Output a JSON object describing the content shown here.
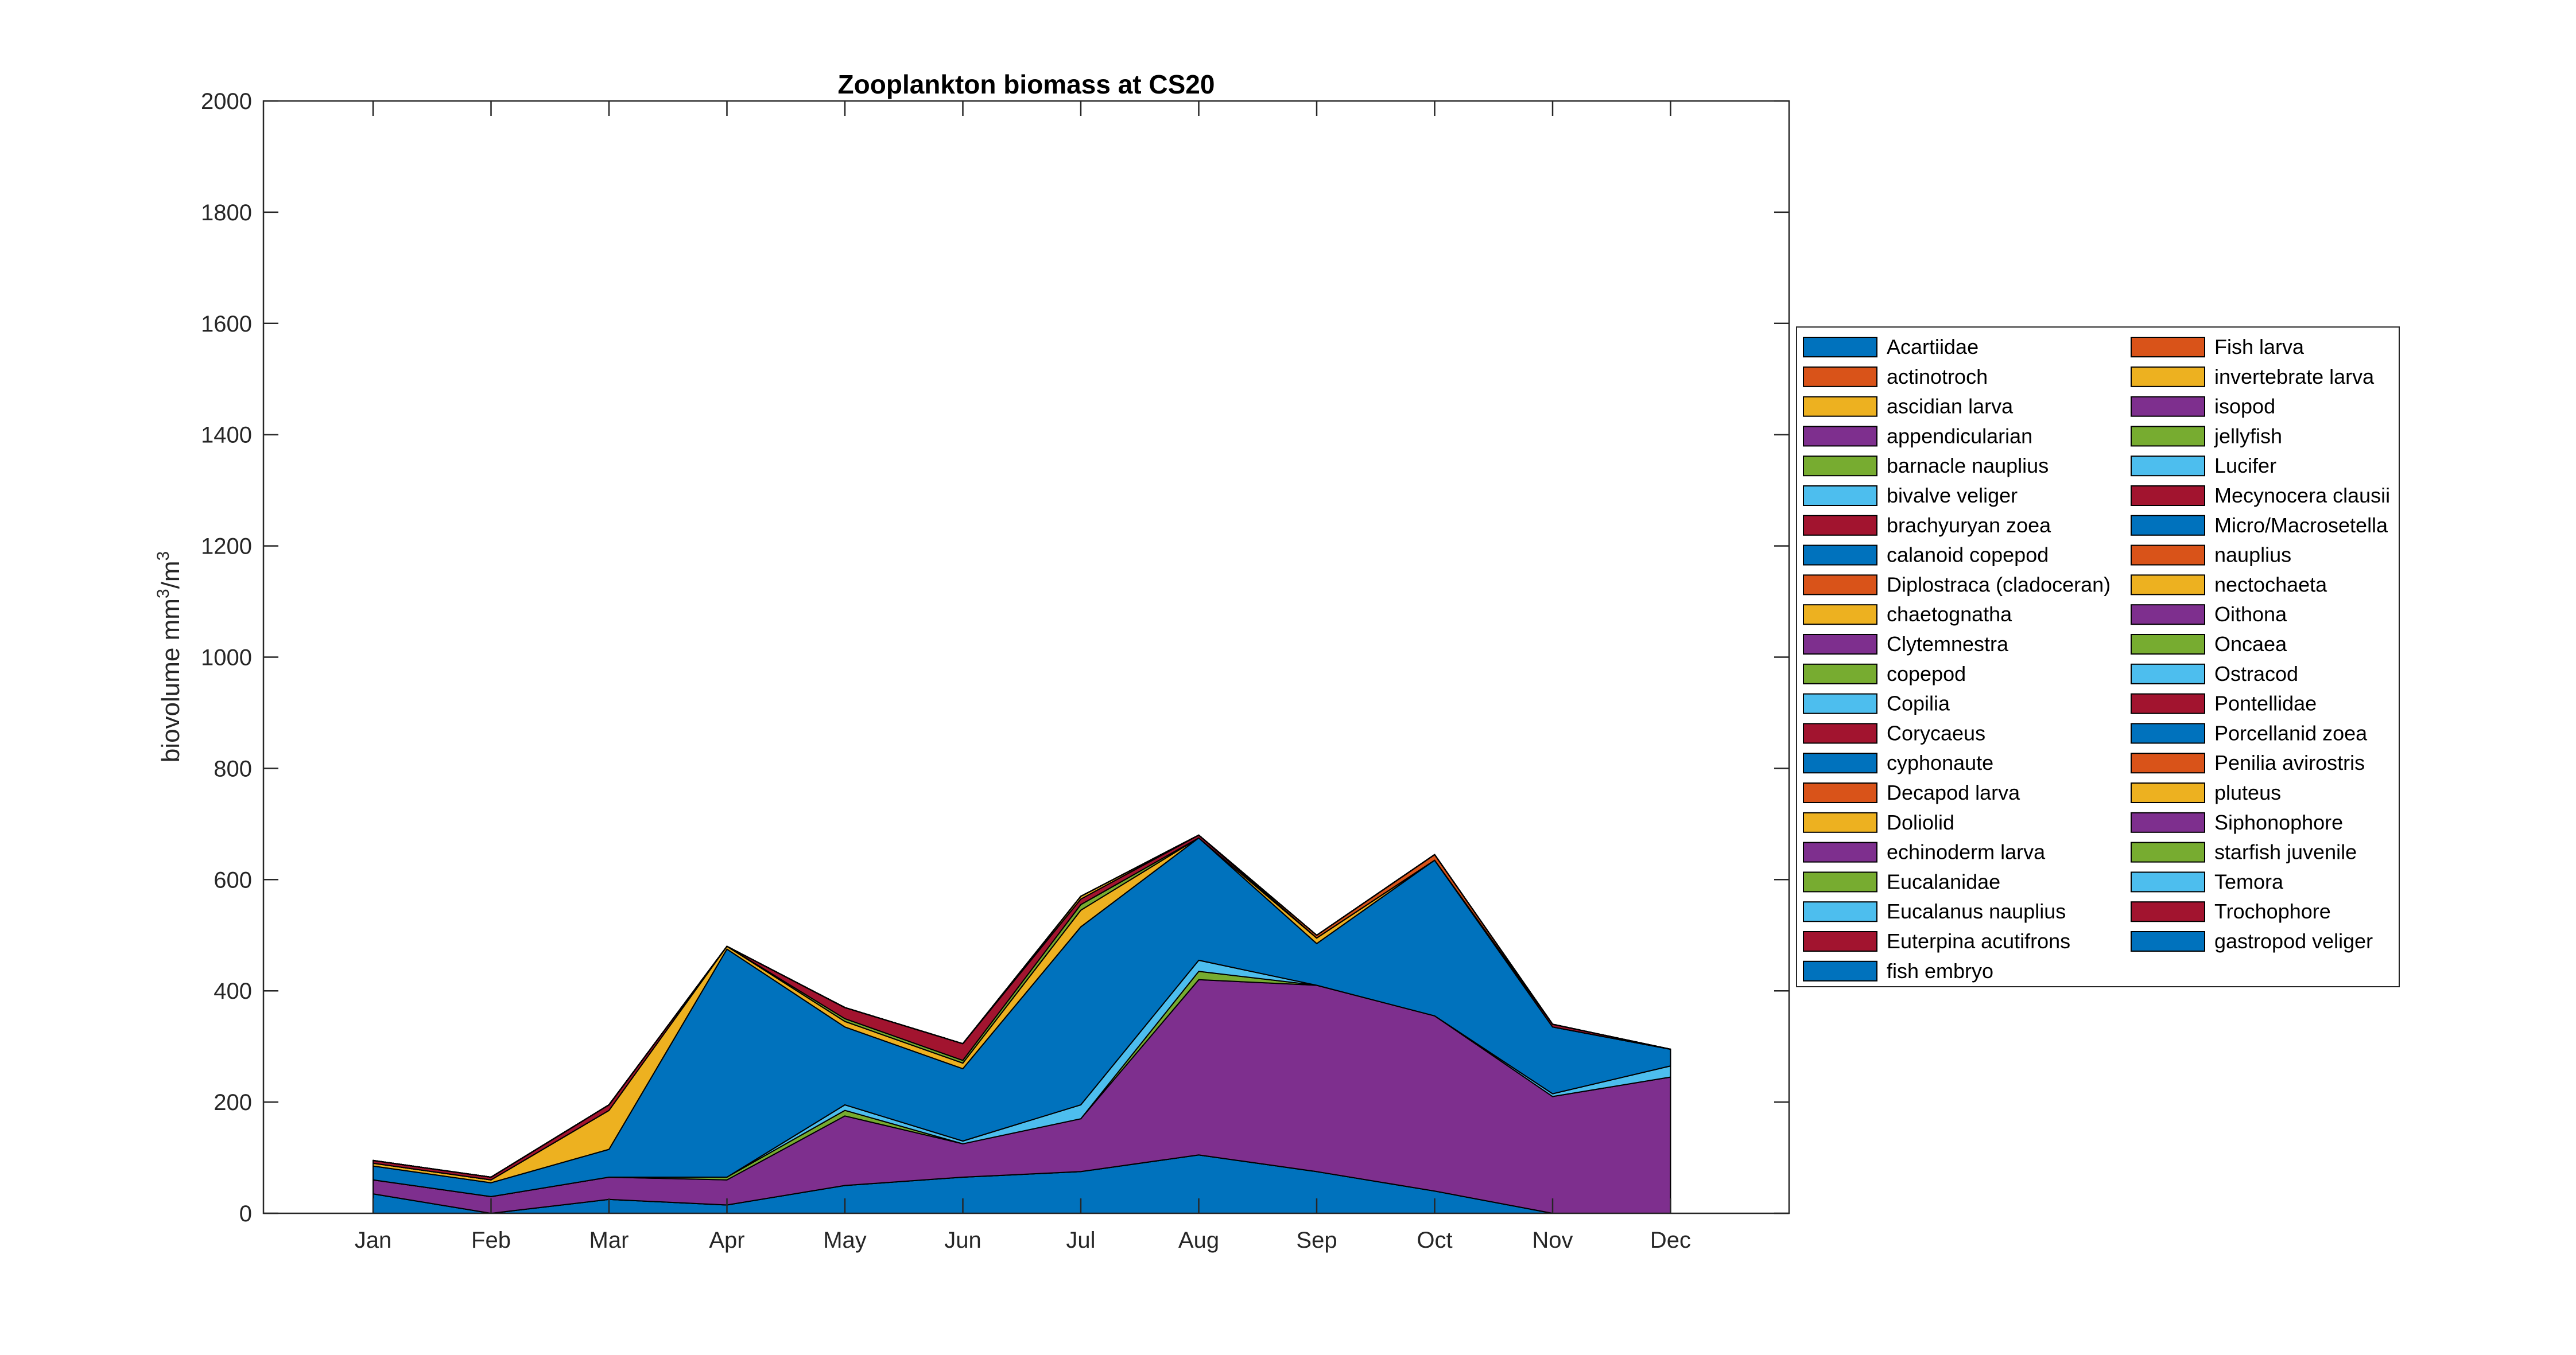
{
  "chart_data": {
    "type": "area",
    "stacked": true,
    "title": "Zooplankton biomass at CS20",
    "xlabel": "",
    "ylabel": "biovolume mm",
    "ylabel_sup1": "3",
    "ylabel_mid": "/m",
    "ylabel_sup2": "3",
    "ylim": [
      0,
      2000
    ],
    "yticks": [
      "0",
      "200",
      "400",
      "600",
      "800",
      "1000",
      "1200",
      "1400",
      "1600",
      "1800",
      "2000"
    ],
    "categories": [
      "Jan",
      "Feb",
      "Mar",
      "Apr",
      "May",
      "Jun",
      "Jul",
      "Aug",
      "Sep",
      "Oct",
      "Nov",
      "Dec"
    ],
    "grid": false,
    "legend_position": "right",
    "series": [
      {
        "name": "Acartiidae",
        "color": "#0072BD",
        "values": [
          35,
          0,
          25,
          15,
          50,
          65,
          75,
          105,
          75,
          40,
          0,
          0
        ]
      },
      {
        "name": "actinotroch",
        "color": "#D95319",
        "values": [
          0,
          0,
          0,
          0,
          0,
          0,
          0,
          0,
          0,
          0,
          0,
          0
        ]
      },
      {
        "name": "ascidian larva",
        "color": "#EDB120",
        "values": [
          0,
          0,
          0,
          0,
          0,
          0,
          0,
          0,
          0,
          0,
          0,
          0
        ]
      },
      {
        "name": "appendicularian",
        "color": "#7E2F8E",
        "values": [
          25,
          30,
          40,
          45,
          125,
          60,
          95,
          315,
          335,
          315,
          210,
          245
        ]
      },
      {
        "name": "barnacle nauplius",
        "color": "#77AC30",
        "values": [
          0,
          0,
          0,
          5,
          10,
          0,
          0,
          15,
          0,
          0,
          0,
          0
        ]
      },
      {
        "name": "bivalve veliger",
        "color": "#4DBEEE",
        "values": [
          0,
          0,
          0,
          0,
          10,
          5,
          25,
          20,
          0,
          0,
          5,
          20
        ]
      },
      {
        "name": "brachyuryan zoea",
        "color": "#A2142F",
        "values": [
          0,
          0,
          0,
          0,
          0,
          0,
          0,
          0,
          0,
          0,
          0,
          0
        ]
      },
      {
        "name": "calanoid copepod",
        "color": "#0072BD",
        "values": [
          25,
          25,
          50,
          410,
          140,
          130,
          320,
          220,
          75,
          280,
          120,
          30
        ]
      },
      {
        "name": "Diplostraca (cladoceran)",
        "color": "#D95319",
        "values": [
          0,
          0,
          0,
          0,
          0,
          0,
          0,
          0,
          0,
          0,
          0,
          0
        ]
      },
      {
        "name": "chaetognatha",
        "color": "#EDB120",
        "values": [
          5,
          5,
          70,
          5,
          10,
          10,
          30,
          0,
          10,
          0,
          0,
          0
        ]
      },
      {
        "name": "Clytemnestra",
        "color": "#7E2F8E",
        "values": [
          0,
          0,
          0,
          0,
          0,
          0,
          0,
          0,
          0,
          0,
          0,
          0
        ]
      },
      {
        "name": "copepod",
        "color": "#77AC30",
        "values": [
          0,
          0,
          0,
          0,
          5,
          5,
          10,
          0,
          0,
          0,
          0,
          0
        ]
      },
      {
        "name": "Copilia",
        "color": "#4DBEEE",
        "values": [
          0,
          0,
          0,
          0,
          0,
          0,
          0,
          0,
          0,
          0,
          0,
          0
        ]
      },
      {
        "name": "Corycaeus",
        "color": "#A2142F",
        "values": [
          5,
          5,
          10,
          0,
          20,
          30,
          10,
          5,
          0,
          0,
          5,
          0
        ]
      },
      {
        "name": "cyphonaute",
        "color": "#0072BD",
        "values": [
          0,
          0,
          0,
          0,
          0,
          0,
          0,
          0,
          0,
          0,
          0,
          0
        ]
      },
      {
        "name": "Decapod larva",
        "color": "#D95319",
        "values": [
          0,
          0,
          0,
          0,
          0,
          0,
          0,
          0,
          0,
          0,
          0,
          0
        ]
      },
      {
        "name": "Doliolid",
        "color": "#EDB120",
        "values": [
          0,
          0,
          0,
          0,
          0,
          0,
          5,
          0,
          0,
          0,
          0,
          0
        ]
      },
      {
        "name": "echinoderm larva",
        "color": "#7E2F8E",
        "values": [
          0,
          0,
          0,
          0,
          0,
          0,
          0,
          0,
          0,
          0,
          0,
          0
        ]
      },
      {
        "name": "Eucalanidae",
        "color": "#77AC30",
        "values": [
          0,
          0,
          0,
          0,
          0,
          0,
          0,
          0,
          0,
          0,
          0,
          0
        ]
      },
      {
        "name": "Eucalanus nauplius",
        "color": "#4DBEEE",
        "values": [
          0,
          0,
          0,
          0,
          0,
          0,
          0,
          0,
          0,
          0,
          0,
          0
        ]
      },
      {
        "name": "Euterpina acutifrons",
        "color": "#A2142F",
        "values": [
          0,
          0,
          0,
          0,
          0,
          0,
          0,
          0,
          0,
          0,
          0,
          0
        ]
      },
      {
        "name": "fish embryo",
        "color": "#0072BD",
        "values": [
          0,
          0,
          0,
          0,
          0,
          0,
          0,
          0,
          0,
          0,
          0,
          0
        ]
      },
      {
        "name": "Fish larva",
        "color": "#D95319",
        "values": [
          0,
          0,
          0,
          0,
          0,
          0,
          0,
          0,
          5,
          10,
          0,
          0
        ]
      },
      {
        "name": "invertebrate larva",
        "color": "#EDB120",
        "values": [
          0,
          0,
          0,
          0,
          0,
          0,
          0,
          0,
          0,
          0,
          0,
          0
        ]
      },
      {
        "name": "isopod",
        "color": "#7E2F8E",
        "values": [
          0,
          0,
          0,
          0,
          0,
          0,
          0,
          0,
          0,
          0,
          0,
          0
        ]
      },
      {
        "name": "jellyfish",
        "color": "#77AC30",
        "values": [
          0,
          0,
          0,
          0,
          0,
          0,
          0,
          0,
          0,
          0,
          0,
          0
        ]
      },
      {
        "name": "Lucifer",
        "color": "#4DBEEE",
        "values": [
          0,
          0,
          0,
          0,
          0,
          0,
          0,
          0,
          0,
          0,
          0,
          0
        ]
      },
      {
        "name": "Mecynocera clausii",
        "color": "#A2142F",
        "values": [
          0,
          0,
          0,
          0,
          0,
          0,
          0,
          0,
          0,
          0,
          0,
          0
        ]
      },
      {
        "name": "Micro/Macrosetella",
        "color": "#0072BD",
        "values": [
          0,
          0,
          0,
          0,
          0,
          0,
          0,
          0,
          0,
          0,
          0,
          0
        ]
      },
      {
        "name": "nauplius",
        "color": "#D95319",
        "values": [
          0,
          0,
          0,
          0,
          0,
          0,
          0,
          0,
          0,
          0,
          0,
          0
        ]
      },
      {
        "name": "nectochaeta",
        "color": "#EDB120",
        "values": [
          0,
          0,
          0,
          0,
          0,
          0,
          0,
          0,
          0,
          0,
          0,
          0
        ]
      },
      {
        "name": "Oithona",
        "color": "#7E2F8E",
        "values": [
          0,
          0,
          0,
          0,
          0,
          0,
          0,
          0,
          0,
          0,
          0,
          0
        ]
      },
      {
        "name": "Oncaea",
        "color": "#77AC30",
        "values": [
          0,
          0,
          0,
          0,
          0,
          0,
          0,
          0,
          0,
          0,
          0,
          0
        ]
      },
      {
        "name": "Ostracod",
        "color": "#4DBEEE",
        "values": [
          0,
          0,
          0,
          0,
          0,
          0,
          0,
          0,
          0,
          0,
          0,
          0
        ]
      },
      {
        "name": "Pontellidae",
        "color": "#A2142F",
        "values": [
          0,
          0,
          0,
          0,
          0,
          0,
          0,
          0,
          0,
          0,
          0,
          0
        ]
      },
      {
        "name": "Porcellanid zoea",
        "color": "#0072BD",
        "values": [
          0,
          0,
          0,
          0,
          0,
          0,
          0,
          0,
          0,
          0,
          0,
          0
        ]
      },
      {
        "name": "Penilia avirostris",
        "color": "#D95319",
        "values": [
          0,
          0,
          0,
          0,
          0,
          0,
          0,
          0,
          0,
          0,
          0,
          0
        ]
      },
      {
        "name": "pluteus",
        "color": "#EDB120",
        "values": [
          0,
          0,
          0,
          0,
          0,
          0,
          0,
          0,
          0,
          0,
          0,
          0
        ]
      },
      {
        "name": "Siphonophore",
        "color": "#7E2F8E",
        "values": [
          0,
          0,
          0,
          0,
          0,
          0,
          0,
          0,
          0,
          0,
          0,
          0
        ]
      },
      {
        "name": "starfish juvenile",
        "color": "#77AC30",
        "values": [
          0,
          0,
          0,
          0,
          0,
          0,
          0,
          0,
          0,
          0,
          0,
          0
        ]
      },
      {
        "name": "Temora",
        "color": "#4DBEEE",
        "values": [
          0,
          0,
          0,
          0,
          0,
          0,
          0,
          0,
          0,
          0,
          0,
          0
        ]
      },
      {
        "name": "Trochophore",
        "color": "#A2142F",
        "values": [
          0,
          0,
          0,
          0,
          0,
          0,
          0,
          0,
          0,
          0,
          0,
          0
        ]
      },
      {
        "name": "gastropod veliger",
        "color": "#0072BD",
        "values": [
          0,
          0,
          0,
          0,
          0,
          0,
          0,
          0,
          0,
          0,
          0,
          0
        ]
      }
    ]
  }
}
